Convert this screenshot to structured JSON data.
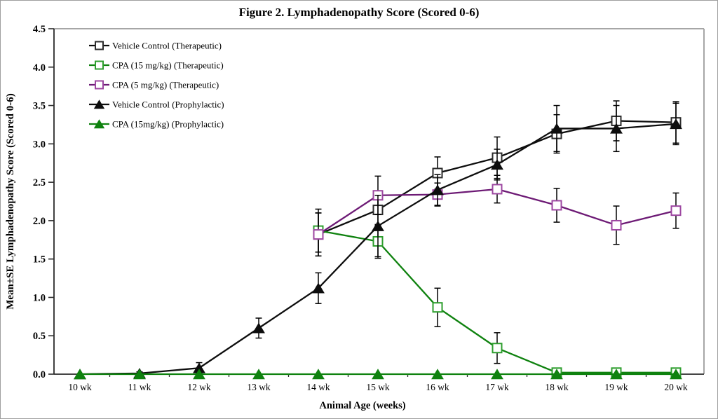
{
  "chart_data": {
    "type": "line",
    "title": "Figure 2. Lymphadenopathy Score (Scored 0-6)",
    "xlabel": "Animal Age (weeks)",
    "ylabel": "Mean±SE Lymphadenopathy Score (Scored 0-6)",
    "x_values": [
      10,
      11,
      12,
      13,
      14,
      15,
      16,
      17,
      18,
      19,
      20
    ],
    "x_ticks": [
      "10 wk",
      "11 wk",
      "12 wk",
      "13 wk",
      "14 wk",
      "15 wk",
      "16 wk",
      "17 wk",
      "18 wk",
      "19 wk",
      "20 wk"
    ],
    "ylim": [
      0,
      4.5
    ],
    "y_tick_step": 0.5,
    "grid": false,
    "legend_position": "top-left-inside",
    "error_bar_color": "#000000",
    "frame_color": "#a6a6a6",
    "axis_color": "#2b2b2b",
    "series": [
      {
        "name": "Vehicle Control (Therapeutic)",
        "line_color": "#0d0d0d",
        "marker": "open-square",
        "marker_stroke": "#2b2b2b",
        "x": [
          14,
          15,
          16,
          17,
          18,
          19,
          20
        ],
        "y": [
          1.82,
          2.14,
          2.62,
          2.82,
          3.13,
          3.3,
          3.28
        ],
        "se": [
          0.28,
          0.2,
          0.21,
          0.27,
          0.25,
          0.26,
          0.27
        ]
      },
      {
        "name": "CPA (15 mg/kg) (Therapeutic)",
        "line_color": "#0f820f",
        "marker": "open-square",
        "marker_stroke": "#2e9e2e",
        "x": [
          14,
          15,
          16,
          17,
          18,
          19,
          20
        ],
        "y": [
          1.87,
          1.73,
          0.87,
          0.34,
          0.02,
          0.02,
          0.02
        ],
        "se": [
          0.28,
          0.22,
          0.25,
          0.2,
          0,
          0,
          0
        ]
      },
      {
        "name": "CPA (5 mg/kg) (Therapeutic)",
        "line_color": "#6d1a75",
        "marker": "open-square",
        "marker_stroke": "#9c46a0",
        "x": [
          14,
          15,
          16,
          17,
          18,
          19,
          20
        ],
        "y": [
          1.82,
          2.33,
          2.34,
          2.41,
          2.2,
          1.94,
          2.13
        ],
        "se": [
          0.28,
          0.25,
          0.15,
          0.18,
          0.22,
          0.25,
          0.23
        ]
      },
      {
        "name": "Vehicle Control (Prophylactic)",
        "line_color": "#0d0d0d",
        "marker": "filled-triangle",
        "marker_stroke": "#0d0d0d",
        "x": [
          10,
          11,
          12,
          13,
          14,
          15,
          16,
          17,
          18,
          19,
          20
        ],
        "y": [
          0.0,
          0.01,
          0.08,
          0.6,
          1.12,
          1.93,
          2.4,
          2.73,
          3.2,
          3.2,
          3.26
        ],
        "se": [
          0,
          0.02,
          0.07,
          0.13,
          0.2,
          0.4,
          0.2,
          0.2,
          0.3,
          0.3,
          0.27
        ]
      },
      {
        "name": "CPA (15mg/kg) (Prophylactic)",
        "line_color": "#0f820f",
        "marker": "filled-triangle",
        "marker_stroke": "#0f820f",
        "x": [
          10,
          11,
          12,
          13,
          14,
          15,
          16,
          17,
          18,
          19,
          20
        ],
        "y": [
          0.0,
          0.0,
          0.0,
          0.0,
          0.0,
          0.0,
          0.0,
          0.0,
          0.0,
          0.0,
          0.0
        ],
        "se": [
          0,
          0,
          0,
          0,
          0,
          0,
          0,
          0,
          0,
          0,
          0
        ]
      }
    ]
  }
}
